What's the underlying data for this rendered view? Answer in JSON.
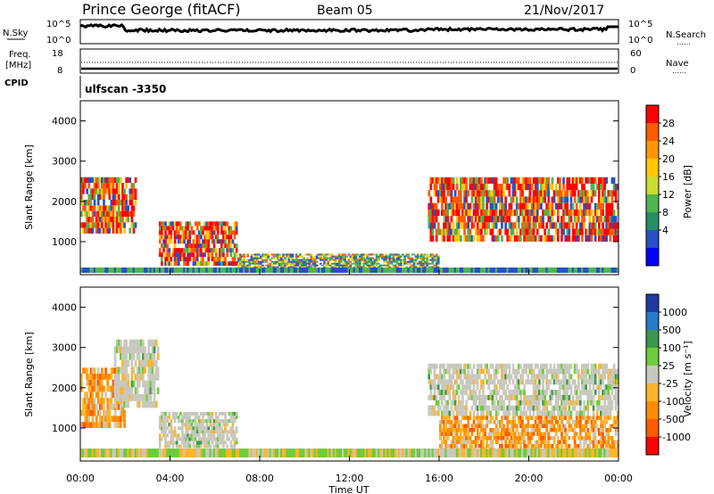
{
  "header": {
    "station": "Prince George (fitACF)",
    "beam": "Beam 05",
    "date": "21/Nov/2017"
  },
  "side_labels": {
    "nsky": "N.Sky",
    "freq_line1": "Freq.",
    "freq_line2": "[MHz]",
    "cpid": "CPID",
    "nsearch": "N.Search",
    "nave": "Nave",
    "dots": "……"
  },
  "control_program": "ulfscan -3350",
  "time_axis": {
    "label": "Time UT",
    "ticks": [
      "00:00",
      "04:00",
      "08:00",
      "12:00",
      "16:00",
      "20:00",
      "00:00"
    ]
  },
  "noise_panel": {
    "left_ticks": [
      "10^5",
      "10^0"
    ],
    "right_ticks": [
      "10^5",
      "10^0"
    ]
  },
  "freq_panel": {
    "left_ticks": [
      "18",
      "8"
    ],
    "right_ticks": [
      "60",
      "0"
    ]
  },
  "range_axis": {
    "label": "Slant Range [km]",
    "ticks": [
      "4000",
      "3000",
      "2000",
      "1000"
    ]
  },
  "power_colorbar": {
    "label": "Power [dB]",
    "ticks": [
      "28",
      "24",
      "20",
      "16",
      "12",
      "8",
      "4"
    ],
    "colors": [
      "#ff0000",
      "#ff5a00",
      "#ff9600",
      "#ffc800",
      "#c8dc32",
      "#50b450",
      "#288c64",
      "#2850c8",
      "#0000ff"
    ]
  },
  "velocity_colorbar": {
    "label": "Velocity [m s⁻¹]",
    "ticks": [
      "1000",
      "500",
      "100",
      "25",
      "-25",
      "-100",
      "-500",
      "-1000"
    ],
    "colors": [
      "#1e3ca0",
      "#2878c8",
      "#3c9650",
      "#6ecc3c",
      "#c8c8be",
      "#ffb428",
      "#ff8c00",
      "#ff5a00",
      "#ff0000"
    ]
  },
  "chart_data": {
    "type": "heatmap",
    "x_range_hours": [
      0,
      24
    ],
    "y_range_km": [
      180,
      4500
    ],
    "power_regions": [
      {
        "t0": 0.0,
        "t1": 2.5,
        "r0": 1200,
        "r1": 2600,
        "level": "high"
      },
      {
        "t0": 3.5,
        "t1": 7.0,
        "r0": 400,
        "r1": 1500,
        "level": "high"
      },
      {
        "t0": 7.0,
        "t1": 16.0,
        "r0": 250,
        "r1": 700,
        "level": "mid"
      },
      {
        "t0": 15.5,
        "t1": 24.0,
        "r0": 1000,
        "r1": 2600,
        "level": "high"
      }
    ],
    "velocity_regions": [
      {
        "t0": 0.0,
        "t1": 2.0,
        "r0": 1000,
        "r1": 2500,
        "sign": "negative"
      },
      {
        "t0": 1.5,
        "t1": 3.5,
        "r0": 1500,
        "r1": 3200,
        "sign": "near-zero"
      },
      {
        "t0": 3.5,
        "t1": 7.0,
        "r0": 500,
        "r1": 1400,
        "sign": "near-zero"
      },
      {
        "t0": 15.5,
        "t1": 24.0,
        "r0": 1300,
        "r1": 2600,
        "sign": "near-zero"
      },
      {
        "t0": 16.0,
        "t1": 24.0,
        "r0": 300,
        "r1": 1300,
        "sign": "negative"
      }
    ]
  }
}
